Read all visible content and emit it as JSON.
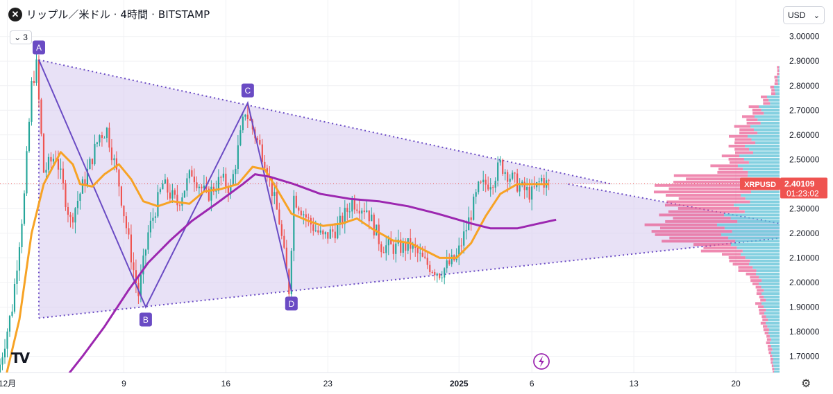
{
  "header": {
    "logo_label": "✕",
    "title": "リップル／米ドル · 4時間 · BITSTAMP",
    "indicator_count": "3"
  },
  "currency_button": {
    "label": "USD"
  },
  "symbol_tag": {
    "name": "XRPUSD",
    "price": "2.40109",
    "countdown": "01:23:02"
  },
  "colors": {
    "up": "#26a69a",
    "down": "#ef5350",
    "ma_fast": "#f7a325",
    "ma_slow": "#9c27b0",
    "pattern": "#6a4bc4",
    "pattern_fill": "#d9cdf0",
    "vp_up": "#5bc0d6",
    "vp_down": "#e8578e"
  },
  "chart_data": {
    "type": "candlestick",
    "symbol": "XRPUSD",
    "exchange": "BITSTAMP",
    "interval": "4時間",
    "ylim": [
      1.6,
      3.05
    ],
    "y_ticks": [
      1.7,
      1.8,
      1.9,
      2.0,
      2.1,
      2.2,
      2.3,
      2.4,
      2.5,
      2.6,
      2.7,
      2.8,
      2.9,
      3.0
    ],
    "y_tick_labels": [
      "1.70000",
      "1.80000",
      "1.90000",
      "2.00000",
      "2.10000",
      "2.20000",
      "2.30000",
      "2.40000",
      "2.50000",
      "2.60000",
      "2.70000",
      "2.80000",
      "2.90000",
      "3.00000"
    ],
    "x_range": [
      "2024-11-30T12:00",
      "2025-01-23T00:00"
    ],
    "x_ticks": [
      {
        "label": "12月",
        "date": "2024-12-01"
      },
      {
        "label": "9",
        "date": "2024-12-09"
      },
      {
        "label": "16",
        "date": "2024-12-16"
      },
      {
        "label": "23",
        "date": "2024-12-23"
      },
      {
        "label": "2025",
        "date": "2025-01-01"
      },
      {
        "label": "6",
        "date": "2025-01-06"
      },
      {
        "label": "13",
        "date": "2025-01-13"
      },
      {
        "label": "20",
        "date": "2025-01-20"
      }
    ],
    "last_price": 2.40109,
    "price_path": [
      [
        "2024-11-30T12:00",
        1.62
      ],
      [
        "2024-12-01T12:00",
        1.9
      ],
      [
        "2024-12-02T08:00",
        2.35
      ],
      [
        "2024-12-02T20:00",
        2.8
      ],
      [
        "2024-12-03T04:00",
        2.88
      ],
      [
        "2024-12-03T16:00",
        2.45
      ],
      [
        "2024-12-04T12:00",
        2.52
      ],
      [
        "2024-12-05T12:00",
        2.25
      ],
      [
        "2024-12-06T12:00",
        2.42
      ],
      [
        "2024-12-07T12:00",
        2.6
      ],
      [
        "2024-12-08T00:00",
        2.62
      ],
      [
        "2024-12-08T20:00",
        2.4
      ],
      [
        "2024-12-09T20:00",
        2.05
      ],
      [
        "2024-12-10T04:00",
        1.95
      ],
      [
        "2024-12-10T20:00",
        2.2
      ],
      [
        "2024-12-11T20:00",
        2.4
      ],
      [
        "2024-12-12T20:00",
        2.32
      ],
      [
        "2024-12-13T20:00",
        2.45
      ],
      [
        "2024-12-14T20:00",
        2.35
      ],
      [
        "2024-12-15T20:00",
        2.42
      ],
      [
        "2024-12-16T12:00",
        2.38
      ],
      [
        "2024-12-17T12:00",
        2.7
      ],
      [
        "2024-12-17T20:00",
        2.65
      ],
      [
        "2024-12-18T20:00",
        2.5
      ],
      [
        "2024-12-19T20:00",
        2.25
      ],
      [
        "2024-12-20T12:00",
        1.97
      ],
      [
        "2024-12-20T20:00",
        2.35
      ],
      [
        "2024-12-21T20:00",
        2.25
      ],
      [
        "2024-12-22T20:00",
        2.18
      ],
      [
        "2024-12-23T20:00",
        2.22
      ],
      [
        "2024-12-24T20:00",
        2.33
      ],
      [
        "2024-12-25T20:00",
        2.3
      ],
      [
        "2024-12-26T20:00",
        2.15
      ],
      [
        "2024-12-27T20:00",
        2.14
      ],
      [
        "2024-12-28T20:00",
        2.15
      ],
      [
        "2024-12-29T20:00",
        2.08
      ],
      [
        "2024-12-30T20:00",
        2.04
      ],
      [
        "2025-01-01T00:00",
        2.1
      ],
      [
        "2025-01-01T20:00",
        2.25
      ],
      [
        "2025-01-02T12:00",
        2.38
      ],
      [
        "2025-01-03T12:00",
        2.42
      ],
      [
        "2025-01-04T00:00",
        2.48
      ],
      [
        "2025-01-04T20:00",
        2.42
      ],
      [
        "2025-01-05T12:00",
        2.38
      ],
      [
        "2025-01-06T04:00",
        2.36
      ],
      [
        "2025-01-06T20:00",
        2.42
      ],
      [
        "2025-01-07T04:00",
        2.40109
      ]
    ],
    "series": [
      {
        "name": "",
        "type": "line",
        "color": "#f7a325",
        "points": [
          [
            "2024-11-30T20:00",
            1.6
          ],
          [
            "2024-12-01T20:00",
            1.85
          ],
          [
            "2024-12-02T16:00",
            2.2
          ],
          [
            "2024-12-03T12:00",
            2.4
          ],
          [
            "2024-12-04T16:00",
            2.53
          ],
          [
            "2024-12-05T12:00",
            2.48
          ],
          [
            "2024-12-06T00:00",
            2.4
          ],
          [
            "2024-12-06T20:00",
            2.39
          ],
          [
            "2024-12-07T16:00",
            2.44
          ],
          [
            "2024-12-08T16:00",
            2.48
          ],
          [
            "2024-12-09T12:00",
            2.42
          ],
          [
            "2024-12-10T08:00",
            2.33
          ],
          [
            "2024-12-11T08:00",
            2.31
          ],
          [
            "2024-12-12T08:00",
            2.33
          ],
          [
            "2024-12-13T12:00",
            2.32
          ],
          [
            "2024-12-14T12:00",
            2.37
          ],
          [
            "2024-12-15T16:00",
            2.38
          ],
          [
            "2024-12-16T20:00",
            2.4
          ],
          [
            "2024-12-17T20:00",
            2.47
          ],
          [
            "2024-12-18T16:00",
            2.46
          ],
          [
            "2024-12-19T12:00",
            2.38
          ],
          [
            "2024-12-20T12:00",
            2.28
          ],
          [
            "2024-12-21T16:00",
            2.25
          ],
          [
            "2024-12-22T16:00",
            2.23
          ],
          [
            "2024-12-24T00:00",
            2.24
          ],
          [
            "2024-12-25T00:00",
            2.26
          ],
          [
            "2024-12-26T00:00",
            2.22
          ],
          [
            "2024-12-27T12:00",
            2.17
          ],
          [
            "2024-12-28T16:00",
            2.16
          ],
          [
            "2024-12-29T16:00",
            2.13
          ],
          [
            "2024-12-30T16:00",
            2.1
          ],
          [
            "2024-12-31T20:00",
            2.1
          ],
          [
            "2025-01-01T20:00",
            2.16
          ],
          [
            "2025-01-02T20:00",
            2.27
          ],
          [
            "2025-01-03T20:00",
            2.36
          ],
          [
            "2025-01-05T00:00",
            2.4
          ],
          [
            "2025-01-06T12:00",
            2.4
          ],
          [
            "2025-01-07T04:00",
            2.4
          ]
        ]
      },
      {
        "name": "",
        "type": "line",
        "color": "#9c27b0",
        "points": [
          [
            "2024-12-04T20:00",
            1.6
          ],
          [
            "2024-12-06T04:00",
            1.7
          ],
          [
            "2024-12-07T16:00",
            1.82
          ],
          [
            "2024-12-09T08:00",
            1.97
          ],
          [
            "2024-12-10T16:00",
            2.08
          ],
          [
            "2024-12-12T04:00",
            2.17
          ],
          [
            "2024-12-13T16:00",
            2.25
          ],
          [
            "2024-12-15T08:00",
            2.32
          ],
          [
            "2024-12-17T04:00",
            2.4
          ],
          [
            "2024-12-18T00:00",
            2.44
          ],
          [
            "2024-12-19T00:00",
            2.43
          ],
          [
            "2024-12-20T16:00",
            2.4
          ],
          [
            "2024-12-22T12:00",
            2.36
          ],
          [
            "2024-12-24T12:00",
            2.34
          ],
          [
            "2024-12-26T12:00",
            2.33
          ],
          [
            "2024-12-28T12:00",
            2.31
          ],
          [
            "2024-12-30T12:00",
            2.28
          ],
          [
            "2025-01-01T20:00",
            2.24
          ],
          [
            "2025-01-03T04:00",
            2.22
          ],
          [
            "2025-01-05T00:00",
            2.22
          ],
          [
            "2025-01-06T12:00",
            2.24
          ],
          [
            "2025-01-07T16:00",
            2.255
          ]
        ]
      }
    ],
    "pattern_points": [
      {
        "label": "A",
        "date": "2024-12-03T04:00",
        "price": 2.905,
        "pos": "above"
      },
      {
        "label": "B",
        "date": "2024-12-10T12:00",
        "price": 1.9,
        "pos": "below"
      },
      {
        "label": "C",
        "date": "2024-12-17T12:00",
        "price": 2.73,
        "pos": "above"
      },
      {
        "label": "D",
        "date": "2024-12-20T12:00",
        "price": 1.965,
        "pos": "below"
      }
    ],
    "triangle": {
      "upper": [
        [
          "2024-12-03T04:00",
          2.905
        ],
        [
          "2025-01-11T12:00",
          2.4
        ]
      ],
      "lower": [
        [
          "2024-12-03T04:00",
          1.855
        ],
        [
          "2025-01-23T00:00",
          2.18
        ]
      ],
      "extra": [
        [
          "2025-01-08T12:00",
          2.4
        ],
        [
          "2025-01-23T00:00",
          2.24
        ]
      ]
    },
    "volume_profile": {
      "bins": [
        {
          "price": 2.86,
          "up": 1,
          "down": 3
        },
        {
          "price": 2.82,
          "up": 3,
          "down": 5
        },
        {
          "price": 2.78,
          "up": 8,
          "down": 6
        },
        {
          "price": 2.74,
          "up": 18,
          "down": 10
        },
        {
          "price": 2.7,
          "up": 30,
          "down": 16
        },
        {
          "price": 2.66,
          "up": 36,
          "down": 20
        },
        {
          "price": 2.62,
          "up": 42,
          "down": 26
        },
        {
          "price": 2.58,
          "up": 46,
          "down": 30
        },
        {
          "price": 2.54,
          "up": 50,
          "down": 26
        },
        {
          "price": 2.5,
          "up": 58,
          "down": 28
        },
        {
          "price": 2.46,
          "up": 60,
          "down": 44
        },
        {
          "price": 2.42,
          "up": 46,
          "down": 118
        },
        {
          "price": 2.38,
          "up": 54,
          "down": 140
        },
        {
          "price": 2.34,
          "up": 56,
          "down": 120
        },
        {
          "price": 2.3,
          "up": 66,
          "down": 110
        },
        {
          "price": 2.26,
          "up": 80,
          "down": 104
        },
        {
          "price": 2.22,
          "up": 90,
          "down": 116
        },
        {
          "price": 2.18,
          "up": 84,
          "down": 106
        },
        {
          "price": 2.14,
          "up": 70,
          "down": 60
        },
        {
          "price": 2.1,
          "up": 56,
          "down": 30
        },
        {
          "price": 2.06,
          "up": 44,
          "down": 26
        },
        {
          "price": 2.02,
          "up": 34,
          "down": 16
        },
        {
          "price": 1.98,
          "up": 30,
          "down": 10
        },
        {
          "price": 1.94,
          "up": 26,
          "down": 8
        },
        {
          "price": 1.9,
          "up": 26,
          "down": 10
        },
        {
          "price": 1.86,
          "up": 22,
          "down": 8
        },
        {
          "price": 1.82,
          "up": 20,
          "down": 8
        },
        {
          "price": 1.78,
          "up": 16,
          "down": 6
        },
        {
          "price": 1.74,
          "up": 14,
          "down": 6
        },
        {
          "price": 1.7,
          "up": 12,
          "down": 4
        },
        {
          "price": 1.66,
          "up": 10,
          "down": 3
        },
        {
          "price": 1.62,
          "up": 8,
          "down": 2
        }
      ]
    }
  }
}
